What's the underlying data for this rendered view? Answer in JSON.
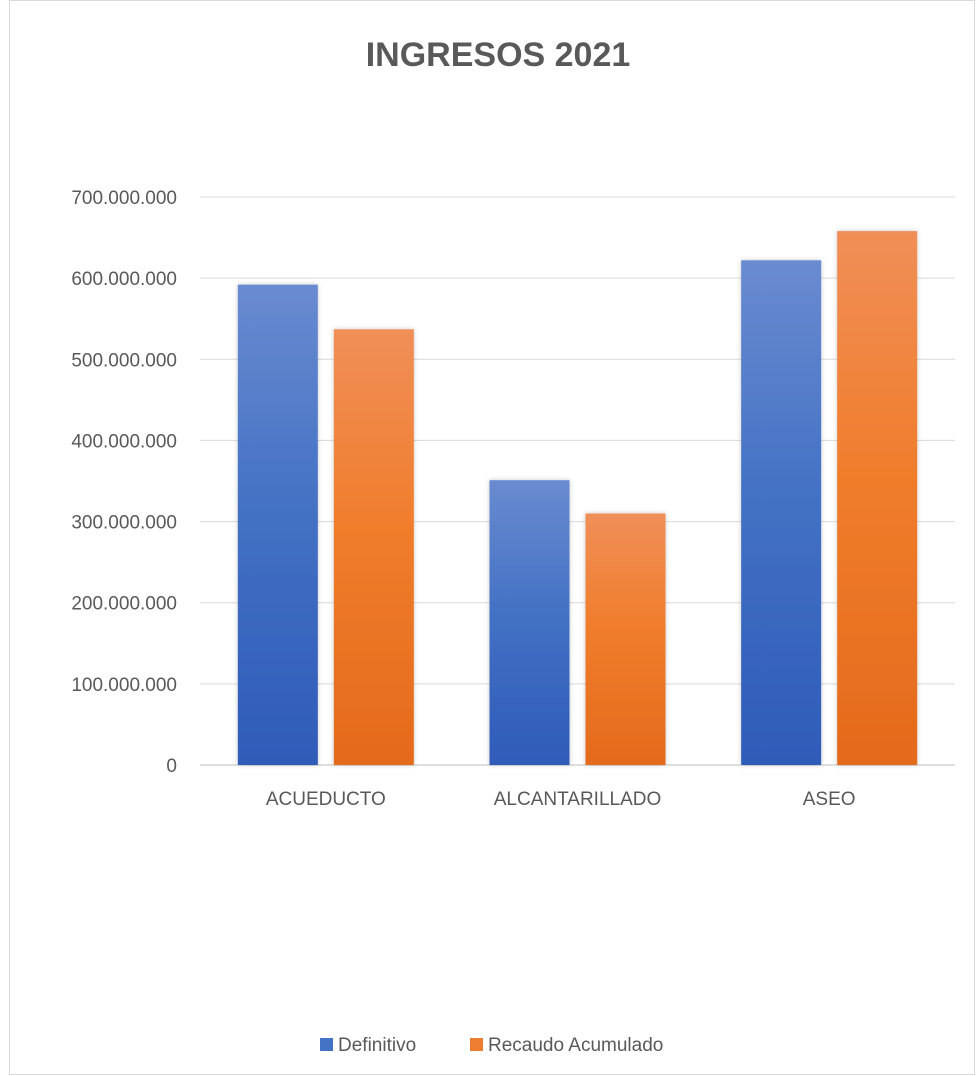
{
  "chart_data": {
    "type": "bar",
    "title": "INGRESOS 2021",
    "xlabel": "",
    "ylabel": "",
    "categories": [
      "ACUEDUCTO",
      "ALCANTARILLADO",
      "ASEO"
    ],
    "series": [
      {
        "name": "Definitivo",
        "values": [
          592000000,
          351000000,
          622000000
        ],
        "color": "#4472c4"
      },
      {
        "name": "Recaudo Acumulado",
        "values": [
          537000000,
          310000000,
          658000000
        ],
        "color": "#ed7d31"
      }
    ],
    "ylim": [
      0,
      700000000
    ],
    "yticks": [
      0,
      100000000,
      200000000,
      300000000,
      400000000,
      500000000,
      600000000,
      700000000
    ],
    "ytick_labels": [
      "0",
      "100.000.000",
      "200.000.000",
      "300.000.000",
      "400.000.000",
      "500.000.000",
      "600.000.000",
      "700.000.000"
    ],
    "grid": true,
    "legend": "bottom"
  }
}
